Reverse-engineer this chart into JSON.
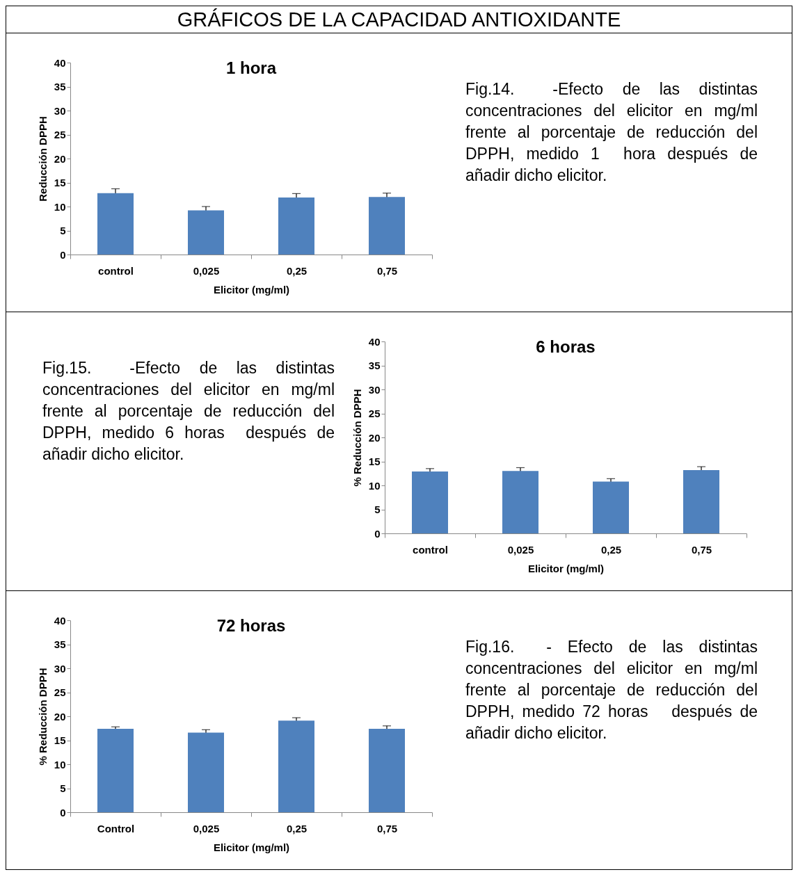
{
  "chart_data": [
    {
      "type": "bar",
      "title": "1 hora",
      "xlabel": "Elicitor (mg/ml)",
      "ylabel": "Reducción DPPH",
      "categories": [
        "control",
        "0,025",
        "0,25",
        "0,75"
      ],
      "values": [
        12.8,
        9.2,
        11.9,
        12.0
      ],
      "errors": [
        0.9,
        0.8,
        0.8,
        0.8
      ],
      "color": "#4f81bd",
      "ylim": [
        0,
        40
      ],
      "yticks": [
        0,
        5,
        10,
        15,
        20,
        25,
        30,
        35,
        40
      ],
      "annotations": [
        "GRÁFICOS DE LA CAPACIDAD ANTIOXIDANTE",
        "Fig.14.  -Efecto de las distintas concentraciones del elicitor en mg/ml frente al porcentaje de reducción del DPPH, medido 1  hora después de añadir dicho elicitor."
      ]
    },
    {
      "type": "bar",
      "title": "6 horas",
      "xlabel": "Elicitor (mg/ml)",
      "ylabel": "% Reducción DPPH",
      "categories": [
        "control",
        "0,025",
        "0,25",
        "0,75"
      ],
      "values": [
        12.9,
        13.0,
        10.8,
        13.2
      ],
      "errors": [
        0.6,
        0.7,
        0.6,
        0.7
      ],
      "color": "#4f81bd",
      "ylim": [
        0,
        40
      ],
      "yticks": [
        0,
        5,
        10,
        15,
        20,
        25,
        30,
        35,
        40
      ],
      "annotations": [
        "Fig.15.  -Efecto de las distintas concentraciones del elicitor en mg/ml frente al porcentaje de reducción del DPPH, medido 6 horas  después de añadir dicho elicitor."
      ]
    },
    {
      "type": "bar",
      "title": "72 horas",
      "xlabel": "Elicitor (mg/ml)",
      "ylabel": "% Reducción DPPH",
      "categories": [
        "Control",
        "0,025",
        "0,25",
        "0,75"
      ],
      "values": [
        17.4,
        16.6,
        19.1,
        17.4
      ],
      "errors": [
        0.4,
        0.6,
        0.6,
        0.6
      ],
      "color": "#4f81bd",
      "ylim": [
        0,
        40
      ],
      "yticks": [
        0,
        5,
        10,
        15,
        20,
        25,
        30,
        35,
        40
      ],
      "annotations": [
        "Fig.16.  - Efecto de las distintas concentraciones del elicitor en mg/ml frente al porcentaje de reducción del DPPH, medido 72 horas   después de añadir dicho elicitor."
      ]
    }
  ]
}
